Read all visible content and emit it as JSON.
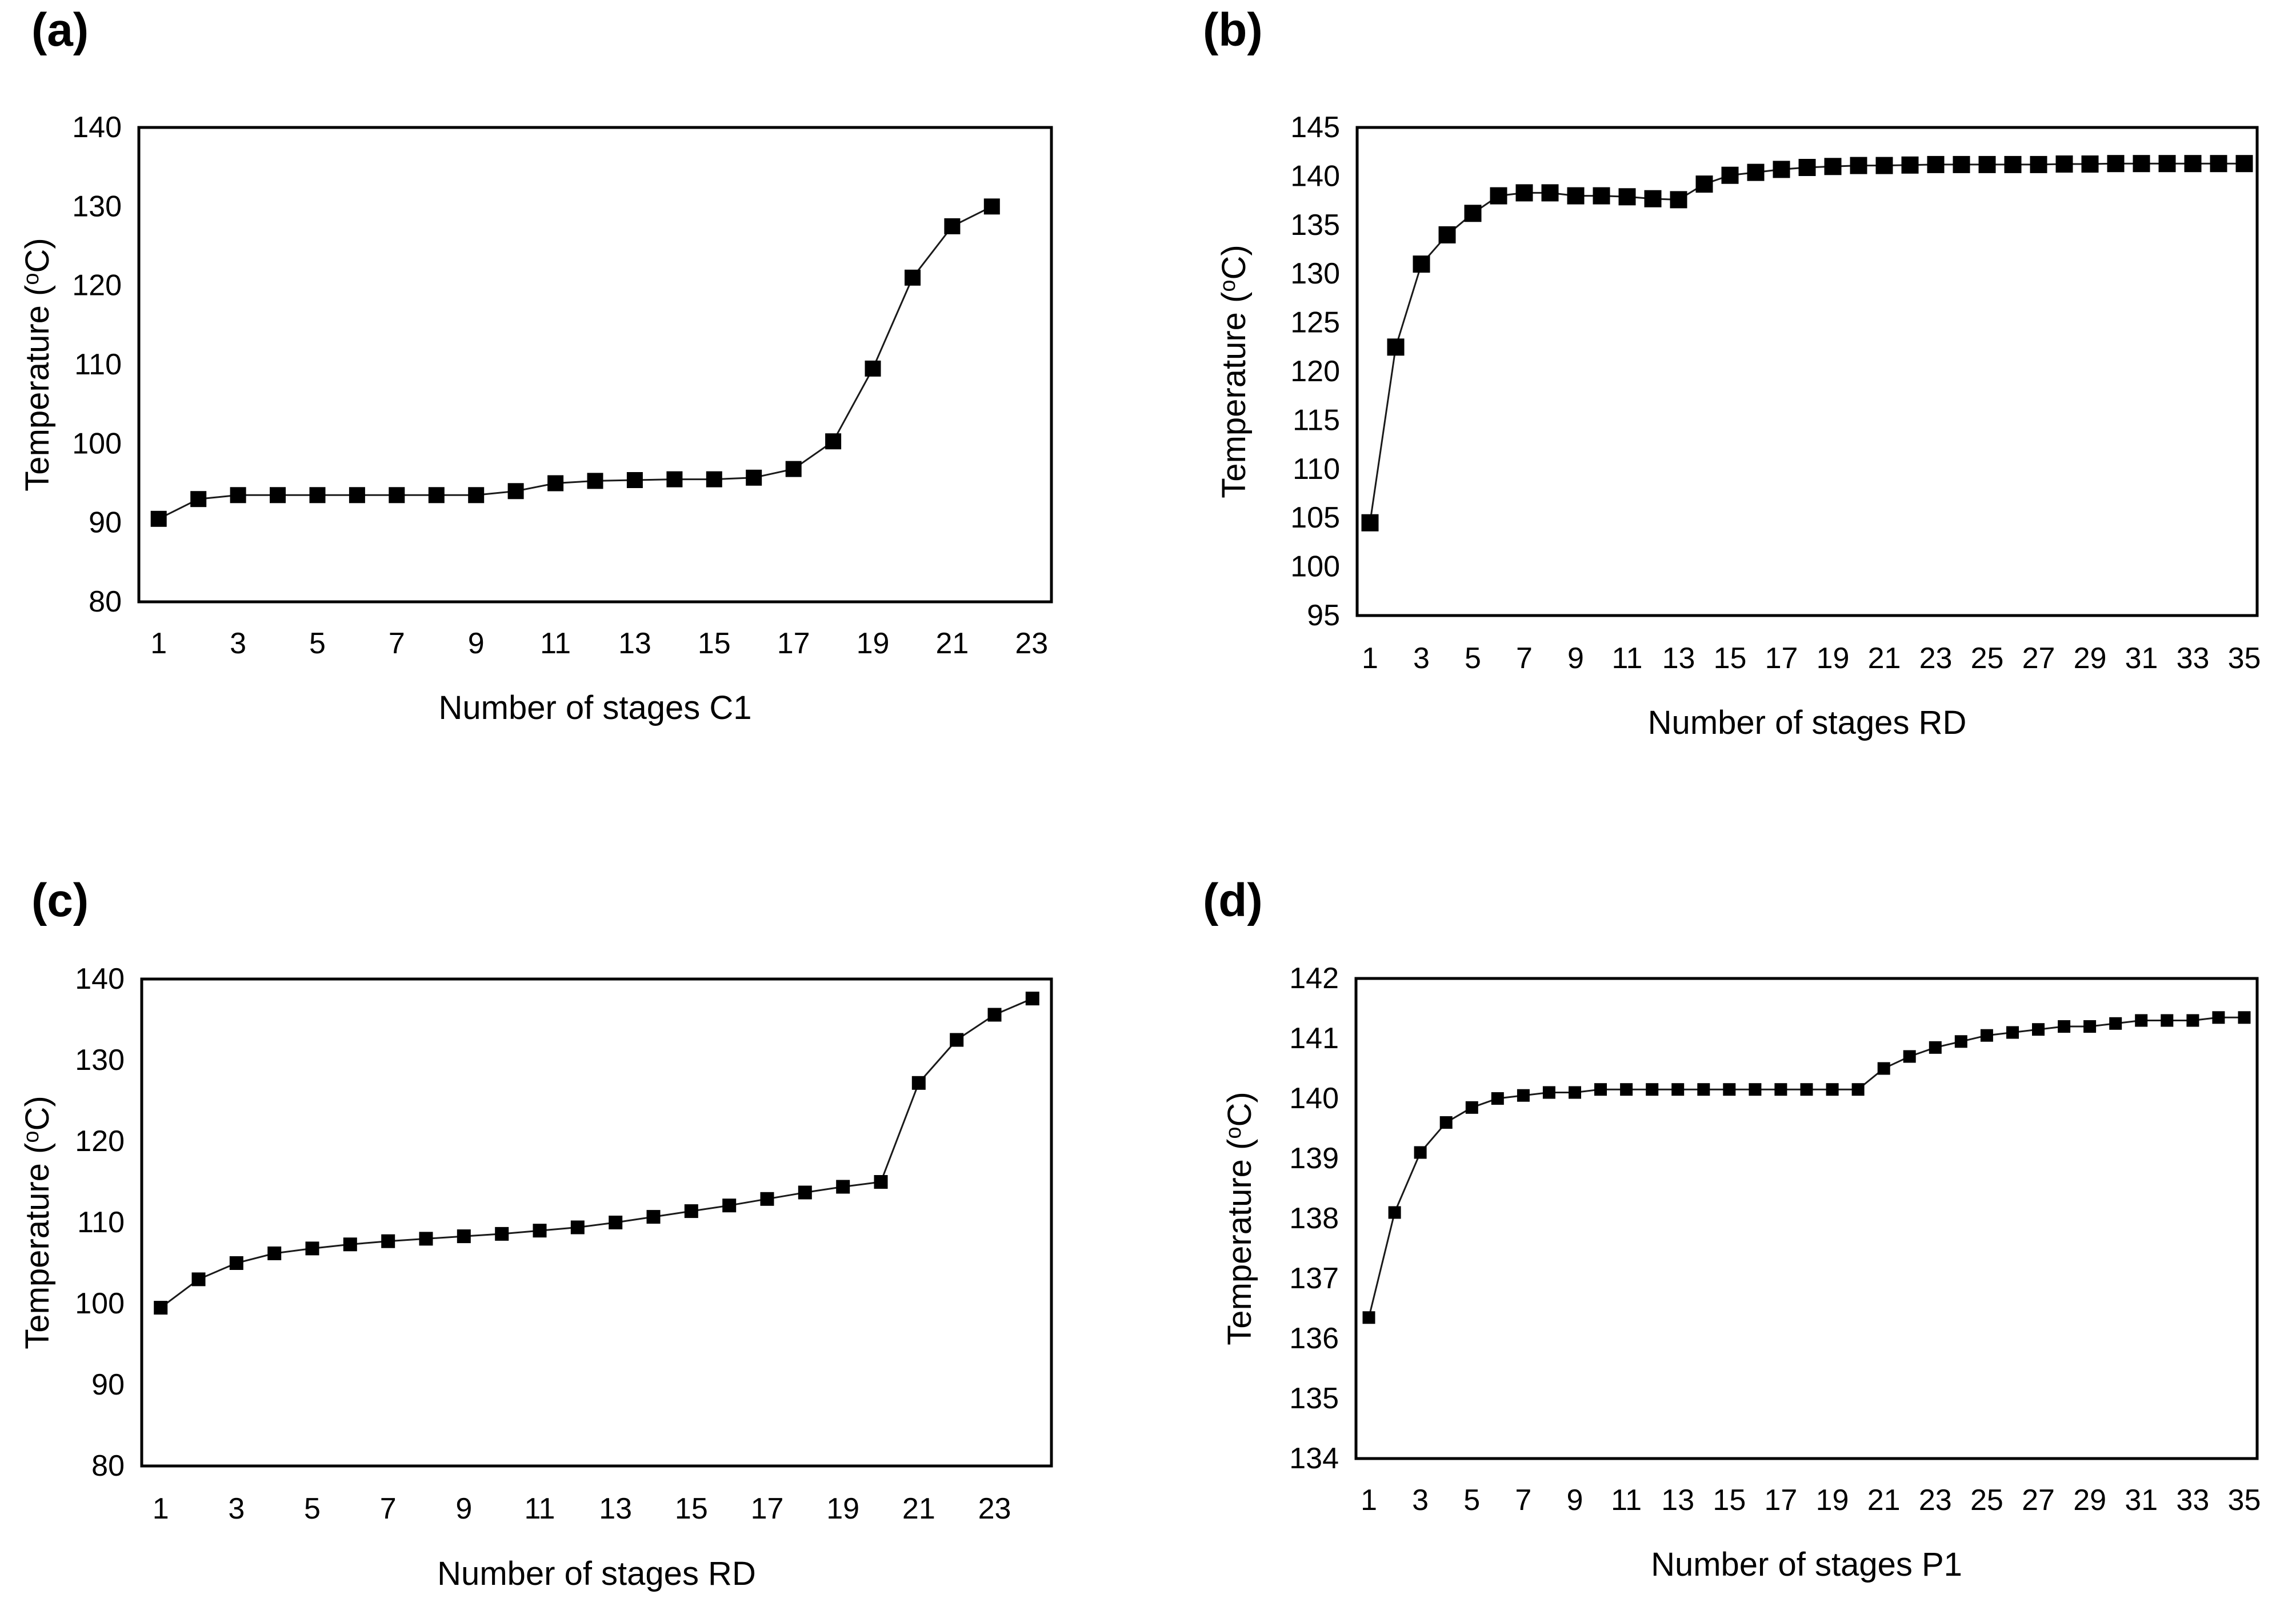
{
  "figure": {
    "background": "#ffffff",
    "text_color": "#000000",
    "marker_color": "#000000",
    "line_color": "#1a1a1a"
  },
  "chart_data": [
    {
      "panel_label": "(a)",
      "type": "line",
      "title": "",
      "xlabel": "Number of stages C1",
      "ylabel_pre": "Temperature (",
      "ylabel_sup": "o",
      "ylabel_post": "C)",
      "xlim": [
        0.5,
        23.5
      ],
      "ylim": [
        80,
        140
      ],
      "yticks": [
        80,
        90,
        100,
        110,
        120,
        130,
        140
      ],
      "xticks": [
        1,
        3,
        5,
        7,
        9,
        11,
        13,
        15,
        17,
        19,
        21,
        23
      ],
      "grid": false,
      "legend": "none",
      "x": [
        1,
        2,
        3,
        4,
        5,
        6,
        7,
        8,
        9,
        10,
        11,
        12,
        13,
        14,
        15,
        16,
        17,
        18,
        19,
        20,
        21,
        22
      ],
      "y": [
        90.5,
        93.0,
        93.5,
        93.5,
        93.5,
        93.5,
        93.5,
        93.5,
        93.5,
        94.0,
        95.0,
        95.3,
        95.4,
        95.5,
        95.5,
        95.7,
        96.8,
        100.3,
        109.5,
        121.0,
        127.5,
        130.0
      ],
      "marker": "square",
      "marker_size": 28,
      "layout": {
        "frame": {
          "l": 243,
          "t": 223,
          "r": 1840,
          "b": 1053
        },
        "ylabel_x": 85,
        "tick_offset": 90,
        "title_offset": 205
      }
    },
    {
      "panel_label": "(b)",
      "type": "line",
      "title": "",
      "xlabel": "Number of stages RD",
      "ylabel_pre": "Temperature (",
      "ylabel_sup": "o",
      "ylabel_post": "C)",
      "xlim": [
        0.5,
        35.5
      ],
      "ylim": [
        95,
        145
      ],
      "yticks": [
        95,
        100,
        105,
        110,
        115,
        120,
        125,
        130,
        135,
        140,
        145
      ],
      "xticks": [
        1,
        3,
        5,
        7,
        9,
        11,
        13,
        15,
        17,
        19,
        21,
        23,
        25,
        27,
        29,
        31,
        33,
        35
      ],
      "grid": false,
      "legend": "none",
      "x": [
        1,
        2,
        3,
        4,
        5,
        6,
        7,
        8,
        9,
        10,
        11,
        12,
        13,
        14,
        15,
        16,
        17,
        18,
        19,
        20,
        21,
        22,
        23,
        24,
        25,
        26,
        27,
        28,
        29,
        30,
        31,
        32,
        33,
        34,
        35
      ],
      "y": [
        104.5,
        122.5,
        131.0,
        134.0,
        136.2,
        138.0,
        138.3,
        138.3,
        138.0,
        138.0,
        137.9,
        137.7,
        137.6,
        139.2,
        140.1,
        140.4,
        140.7,
        140.9,
        141.0,
        141.1,
        141.1,
        141.15,
        141.2,
        141.2,
        141.2,
        141.2,
        141.2,
        141.25,
        141.25,
        141.3,
        141.3,
        141.3,
        141.3,
        141.3,
        141.3
      ],
      "marker": "square",
      "marker_size": 30,
      "layout": {
        "frame": {
          "l": 366,
          "t": 223,
          "r": 1941,
          "b": 1077
        },
        "ylabel_x": 170,
        "tick_offset": 92,
        "title_offset": 207
      }
    },
    {
      "panel_label": "(c)",
      "type": "line",
      "title": "",
      "xlabel": "Number of stages RD",
      "ylabel_pre": "Temperature (",
      "ylabel_sup": "o",
      "ylabel_post": "C)",
      "xlim": [
        0.5,
        24.5
      ],
      "ylim": [
        80,
        140
      ],
      "yticks": [
        80,
        90,
        100,
        110,
        120,
        130,
        140
      ],
      "xticks": [
        1,
        3,
        5,
        7,
        9,
        11,
        13,
        15,
        17,
        19,
        21,
        23
      ],
      "grid": false,
      "legend": "none",
      "x": [
        1,
        2,
        3,
        4,
        5,
        6,
        7,
        8,
        9,
        10,
        11,
        12,
        13,
        14,
        15,
        16,
        17,
        18,
        19,
        20,
        21,
        22,
        23,
        24
      ],
      "y": [
        99.5,
        103.0,
        105.0,
        106.2,
        106.8,
        107.3,
        107.7,
        108.0,
        108.3,
        108.6,
        109.0,
        109.4,
        110.0,
        110.7,
        111.4,
        112.1,
        112.9,
        113.7,
        114.4,
        115.0,
        127.2,
        132.5,
        135.6,
        137.6
      ],
      "marker": "square",
      "marker_size": 24,
      "layout": {
        "frame": {
          "l": 248,
          "t": 294,
          "r": 1840,
          "b": 1146
        },
        "ylabel_x": 85,
        "tick_offset": 92,
        "title_offset": 208
      }
    },
    {
      "panel_label": "(d)",
      "type": "line",
      "title": "",
      "xlabel": "Number of stages P1",
      "ylabel_pre": "Temperature (",
      "ylabel_sup": "o",
      "ylabel_post": "C)",
      "xlim": [
        0.5,
        35.5
      ],
      "ylim": [
        134,
        142
      ],
      "yticks": [
        134,
        135,
        136,
        137,
        138,
        139,
        140,
        141,
        142
      ],
      "xticks": [
        1,
        3,
        5,
        7,
        9,
        11,
        13,
        15,
        17,
        19,
        21,
        23,
        25,
        27,
        29,
        31,
        33,
        35
      ],
      "grid": false,
      "legend": "none",
      "x": [
        1,
        2,
        3,
        4,
        5,
        6,
        7,
        8,
        9,
        10,
        11,
        12,
        13,
        14,
        15,
        16,
        17,
        18,
        19,
        20,
        21,
        22,
        23,
        24,
        25,
        26,
        27,
        28,
        29,
        30,
        31,
        32,
        33,
        34,
        35
      ],
      "y": [
        136.35,
        138.1,
        139.1,
        139.6,
        139.85,
        140.0,
        140.05,
        140.1,
        140.1,
        140.15,
        140.15,
        140.15,
        140.15,
        140.15,
        140.15,
        140.15,
        140.15,
        140.15,
        140.15,
        140.15,
        140.5,
        140.7,
        140.85,
        140.95,
        141.05,
        141.1,
        141.15,
        141.2,
        141.2,
        141.25,
        141.3,
        141.3,
        141.3,
        141.35,
        141.35
      ],
      "marker": "square",
      "marker_size": 22,
      "layout": {
        "frame": {
          "l": 364,
          "t": 293,
          "r": 1941,
          "b": 1133
        },
        "ylabel_x": 180,
        "tick_offset": 90,
        "title_offset": 205
      }
    }
  ]
}
